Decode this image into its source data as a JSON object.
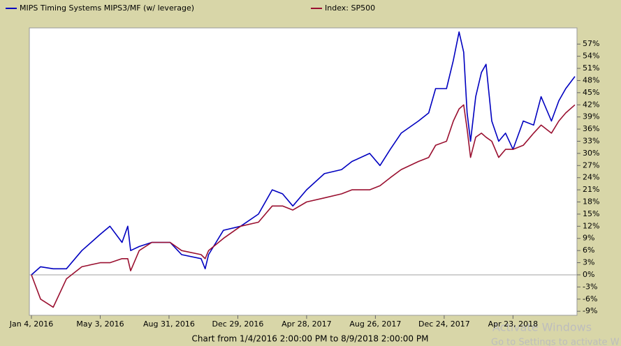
{
  "chart_data": {
    "type": "line",
    "x": [
      "2016-01-04",
      "2016-01-20",
      "2016-02-11",
      "2016-03-05",
      "2016-04-01",
      "2016-05-03",
      "2016-05-20",
      "2016-06-10",
      "2016-06-20",
      "2016-06-25",
      "2016-07-10",
      "2016-08-01",
      "2016-09-02",
      "2016-09-22",
      "2016-10-26",
      "2016-11-02",
      "2016-11-08",
      "2016-12-04",
      "2017-01-03",
      "2017-02-03",
      "2017-02-27",
      "2017-03-17",
      "2017-04-04",
      "2017-04-28",
      "2017-05-29",
      "2017-06-28",
      "2017-07-16",
      "2017-08-16",
      "2017-09-03",
      "2017-09-21",
      "2017-10-10",
      "2017-11-09",
      "2017-11-27",
      "2017-12-09",
      "2017-12-28",
      "2018-01-09",
      "2018-01-19",
      "2018-01-27",
      "2018-02-02",
      "2018-02-08",
      "2018-02-17",
      "2018-02-27",
      "2018-03-07",
      "2018-03-17",
      "2018-03-29",
      "2018-04-10",
      "2018-04-23",
      "2018-05-11",
      "2018-05-29",
      "2018-06-11",
      "2018-06-29",
      "2018-07-12",
      "2018-07-24",
      "2018-08-09"
    ],
    "series": [
      {
        "name": "MIPS Timing Systems MIPS3/MF (w/ leverage)",
        "color": "#0000c0",
        "values": [
          0,
          2,
          1.5,
          1.5,
          6,
          10,
          12,
          8,
          12,
          6,
          7,
          8,
          8,
          5,
          4,
          1.5,
          5,
          11,
          12,
          15,
          21,
          20,
          17,
          21,
          25,
          26,
          28,
          30,
          27,
          31,
          35,
          38,
          40,
          46,
          46,
          53,
          60,
          55,
          40,
          33,
          44,
          50,
          52,
          38,
          33,
          35,
          31,
          38,
          37,
          44,
          38,
          43,
          46,
          49
        ]
      },
      {
        "name": "Index: SP500",
        "color": "#9a1030",
        "values": [
          0,
          -6,
          -8,
          -1,
          2,
          3,
          3,
          4,
          4,
          1,
          6,
          8,
          8,
          6,
          5,
          4,
          6,
          9,
          12,
          13,
          17,
          17,
          16,
          18,
          19,
          20,
          21,
          21,
          22,
          24,
          26,
          28,
          29,
          32,
          33,
          38,
          41,
          42,
          36,
          29,
          34,
          35,
          34,
          33,
          29,
          31,
          31,
          32,
          35,
          37,
          35,
          38,
          40,
          42
        ]
      }
    ],
    "xlim": [
      "2016-01-04",
      "2018-08-09"
    ],
    "xticks": [
      {
        "value": "2016-01-04",
        "label": "Jan 4, 2016"
      },
      {
        "value": "2016-05-03",
        "label": "May 3, 2016"
      },
      {
        "value": "2016-08-31",
        "label": "Aug 31, 2016"
      },
      {
        "value": "2016-12-29",
        "label": "Dec 29, 2016"
      },
      {
        "value": "2017-04-28",
        "label": "Apr 28, 2017"
      },
      {
        "value": "2017-08-26",
        "label": "Aug 26, 2017"
      },
      {
        "value": "2017-12-24",
        "label": "Dec 24, 2017"
      },
      {
        "value": "2018-04-23",
        "label": "Apr 23, 2018"
      }
    ],
    "ylim": [
      -10,
      61
    ],
    "yticks": [
      {
        "value": -9,
        "label": "-9%"
      },
      {
        "value": -6,
        "label": "-6%"
      },
      {
        "value": -3,
        "label": "-3%"
      },
      {
        "value": 0,
        "label": "0%"
      },
      {
        "value": 3,
        "label": "3%"
      },
      {
        "value": 6,
        "label": "6%"
      },
      {
        "value": 9,
        "label": "9%"
      },
      {
        "value": 12,
        "label": "12%"
      },
      {
        "value": 15,
        "label": "15%"
      },
      {
        "value": 18,
        "label": "18%"
      },
      {
        "value": 21,
        "label": "21%"
      },
      {
        "value": 24,
        "label": "24%"
      },
      {
        "value": 27,
        "label": "27%"
      },
      {
        "value": 30,
        "label": "30%"
      },
      {
        "value": 33,
        "label": "33%"
      },
      {
        "value": 36,
        "label": "36%"
      },
      {
        "value": 39,
        "label": "39%"
      },
      {
        "value": 42,
        "label": "42%"
      },
      {
        "value": 45,
        "label": "45%"
      },
      {
        "value": 48,
        "label": "48%"
      },
      {
        "value": 51,
        "label": "51%"
      },
      {
        "value": 54,
        "label": "54%"
      },
      {
        "value": 57,
        "label": "57%"
      }
    ],
    "footer": "Chart from 1/4/2016 2:00:00 PM to 8/9/2018 2:00:00 PM"
  },
  "watermark": {
    "line1": "Activate Windows",
    "line2": "Go to Settings to activate W"
  }
}
